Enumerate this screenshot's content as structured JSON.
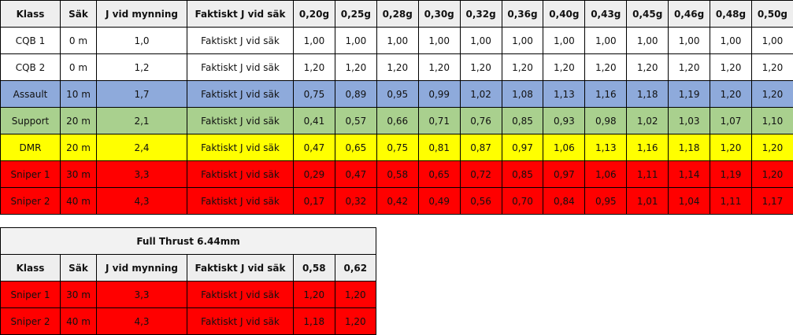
{
  "table1": {
    "headers": [
      "Klass",
      "Säk",
      "J vid mynning",
      "Faktiskt J vid säk",
      "0,20g",
      "0,25g",
      "0,28g",
      "0,30g",
      "0,32g",
      "0,36g",
      "0,40g",
      "0,43g",
      "0,45g",
      "0,46g",
      "0,48g",
      "0,50g"
    ],
    "row_colors": [
      "#ffffff",
      "#ffffff",
      "#8eaadb",
      "#a9d08e",
      "#ffff00",
      "#ff0000",
      "#ff0000"
    ],
    "rows": [
      [
        "CQB 1",
        "0 m",
        "1,0",
        "Faktiskt J vid säk",
        "1,00",
        "1,00",
        "1,00",
        "1,00",
        "1,00",
        "1,00",
        "1,00",
        "1,00",
        "1,00",
        "1,00",
        "1,00",
        "1,00"
      ],
      [
        "CQB 2",
        "0 m",
        "1,2",
        "Faktiskt J vid säk",
        "1,20",
        "1,20",
        "1,20",
        "1,20",
        "1,20",
        "1,20",
        "1,20",
        "1,20",
        "1,20",
        "1,20",
        "1,20",
        "1,20"
      ],
      [
        "Assault",
        "10 m",
        "1,7",
        "Faktiskt J vid säk",
        "0,75",
        "0,89",
        "0,95",
        "0,99",
        "1,02",
        "1,08",
        "1,13",
        "1,16",
        "1,18",
        "1,19",
        "1,20",
        "1,20"
      ],
      [
        "Support",
        "20 m",
        "2,1",
        "Faktiskt J vid säk",
        "0,41",
        "0,57",
        "0,66",
        "0,71",
        "0,76",
        "0,85",
        "0,93",
        "0,98",
        "1,02",
        "1,03",
        "1,07",
        "1,10"
      ],
      [
        "DMR",
        "20 m",
        "2,4",
        "Faktiskt J vid säk",
        "0,47",
        "0,65",
        "0,75",
        "0,81",
        "0,87",
        "0,97",
        "1,06",
        "1,13",
        "1,16",
        "1,18",
        "1,20",
        "1,20"
      ],
      [
        "Sniper 1",
        "30 m",
        "3,3",
        "Faktiskt J vid säk",
        "0,29",
        "0,47",
        "0,58",
        "0,65",
        "0,72",
        "0,85",
        "0,97",
        "1,06",
        "1,11",
        "1,14",
        "1,19",
        "1,20"
      ],
      [
        "Sniper 2",
        "40 m",
        "4,3",
        "Faktiskt J vid säk",
        "0,17",
        "0,32",
        "0,42",
        "0,49",
        "0,56",
        "0,70",
        "0,84",
        "0,95",
        "1,01",
        "1,04",
        "1,11",
        "1,17"
      ]
    ]
  },
  "table2": {
    "title": "Full Thrust 6.44mm",
    "headers": [
      "Klass",
      "Säk",
      "J vid mynning",
      "Faktiskt J vid säk",
      "0,58",
      "0,62"
    ],
    "row_colors": [
      "#ff0000",
      "#ff0000"
    ],
    "rows": [
      [
        "Sniper 1",
        "30 m",
        "3,3",
        "Faktiskt J vid säk",
        "1,20",
        "1,20"
      ],
      [
        "Sniper 2",
        "40 m",
        "4,3",
        "Faktiskt J vid säk",
        "1,18",
        "1,20"
      ]
    ]
  }
}
